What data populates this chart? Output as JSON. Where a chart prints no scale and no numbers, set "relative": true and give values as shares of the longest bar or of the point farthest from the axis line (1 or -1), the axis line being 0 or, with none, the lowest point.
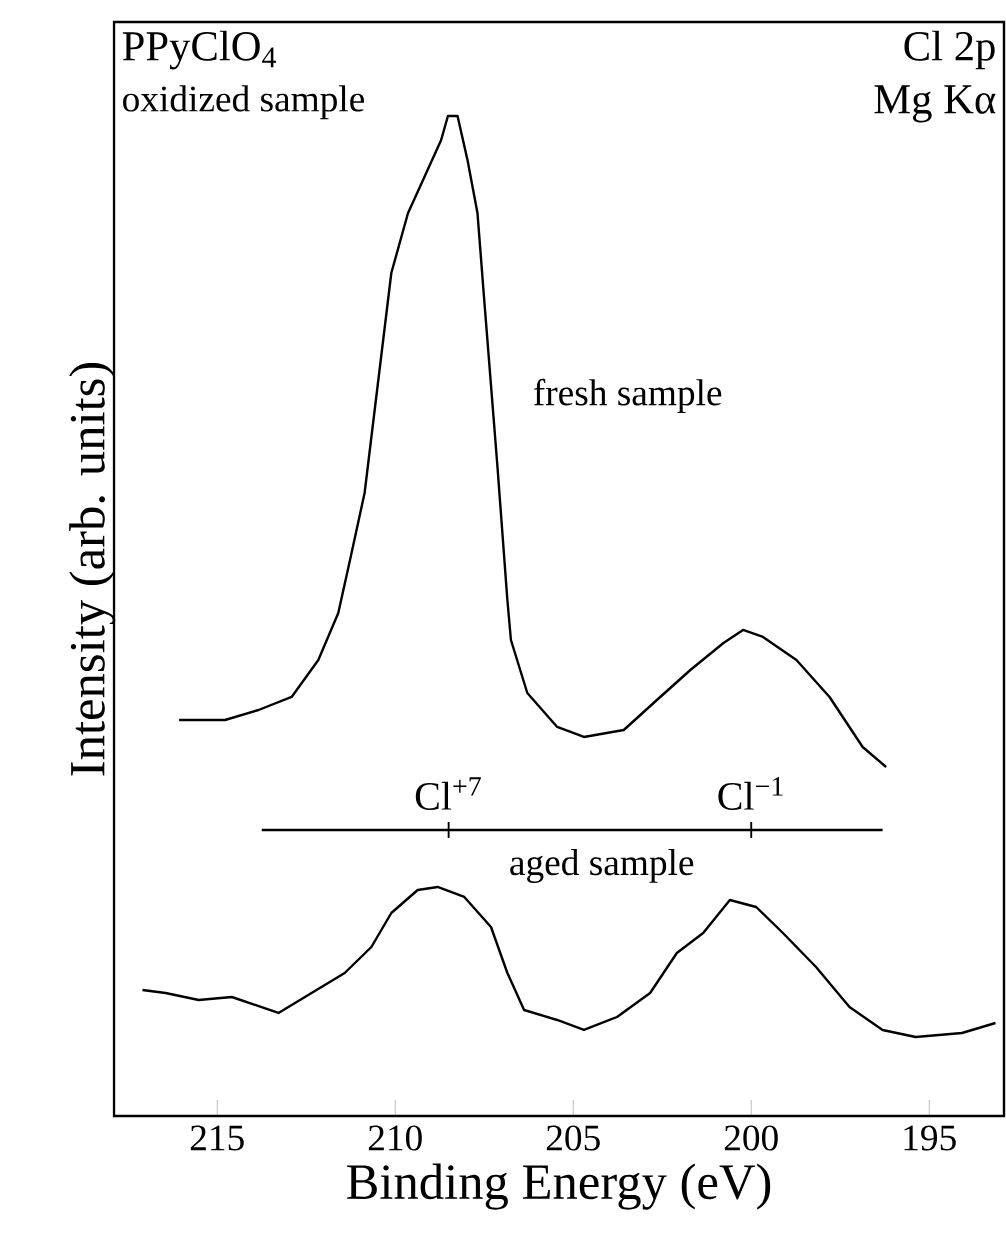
{
  "chart_data": {
    "type": "line",
    "title": "PPyClO$_{4}$",
    "xlabel": "Binding Energy (eV)",
    "ylabel": "Intensity (arb. units)",
    "relative": true,
    "xlim": [
      217.9,
      192.9
    ],
    "xticks": [
      215,
      210,
      205,
      200,
      195
    ],
    "tick_labels": "x",
    "annotations": [
      "oxidized sample",
      "Cl 2p",
      "Mg Kα",
      {
        "text": "Cl$^{+7}$",
        "x": 208.5,
        "y": 0.286
      },
      {
        "text": "Cl$^{−1}$",
        "x": 200.0,
        "y": 0.286
      }
    ],
    "series": [
      {
        "name": "fresh sample",
        "color": "#000000",
        "x": [
          216.07,
          214.78,
          213.84,
          212.91,
          212.16,
          211.6,
          211.27,
          210.86,
          210.11,
          209.64,
          209.18,
          208.71,
          208.52,
          208.25,
          207.97,
          207.69,
          207.5,
          207.13,
          206.85,
          206.75,
          206.29,
          205.45,
          204.7,
          203.58,
          202.65,
          201.71,
          200.78,
          200.23,
          199.67,
          198.73,
          197.8,
          196.87,
          196.21
        ],
        "values": [
          0.396,
          0.396,
          0.406,
          0.419,
          0.456,
          0.503,
          0.556,
          0.623,
          0.843,
          0.903,
          0.939,
          0.976,
          1.0,
          1.0,
          0.956,
          0.903,
          0.816,
          0.65,
          0.516,
          0.476,
          0.423,
          0.389,
          0.379,
          0.386,
          0.416,
          0.446,
          0.473,
          0.486,
          0.479,
          0.456,
          0.419,
          0.369,
          0.349
        ]
      },
      {
        "name": "aged sample",
        "color": "#000000",
        "x": [
          217.1,
          216.45,
          215.52,
          214.59,
          213.28,
          212.35,
          211.42,
          210.67,
          210.11,
          209.37,
          208.81,
          208.06,
          207.31,
          206.85,
          206.38,
          205.45,
          204.7,
          203.77,
          202.84,
          202.09,
          201.35,
          200.6,
          199.86,
          199.11,
          198.18,
          197.24,
          196.31,
          195.38,
          194.08,
          193.14
        ],
        "values": [
          0.126,
          0.123,
          0.116,
          0.119,
          0.103,
          0.123,
          0.143,
          0.169,
          0.203,
          0.226,
          0.229,
          0.219,
          0.189,
          0.143,
          0.106,
          0.096,
          0.086,
          0.099,
          0.123,
          0.163,
          0.183,
          0.216,
          0.209,
          0.183,
          0.149,
          0.109,
          0.086,
          0.079,
          0.083,
          0.093
        ]
      },
      {
        "color": "#000000",
        "x": [
          213.75,
          208.5,
          200.0,
          196.31
        ],
        "values": [
          0.286,
          0.286,
          0.286,
          0.286
        ]
      }
    ]
  }
}
